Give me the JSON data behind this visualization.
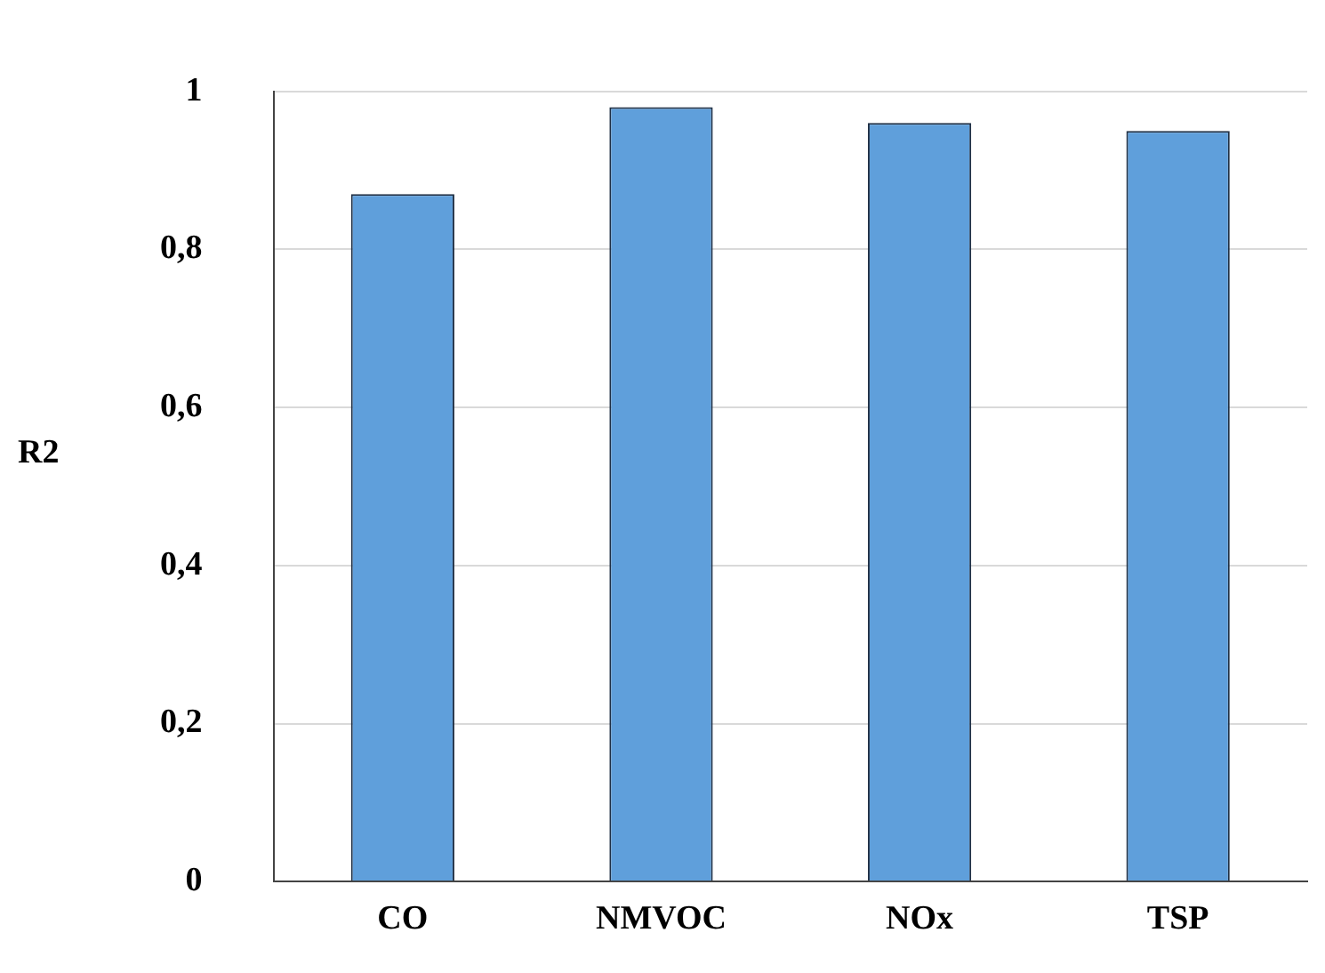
{
  "chart_data": {
    "type": "bar",
    "ylabel": "R2",
    "categories": [
      "CO",
      "NMVOC",
      "NOx",
      "TSP"
    ],
    "values": [
      0.87,
      0.98,
      0.96,
      0.95
    ],
    "color": "#5f9fdb",
    "ylim": [
      0,
      1
    ],
    "yticks": [
      0,
      {
        "value": 0.2,
        "label": "0,2"
      },
      {
        "value": 0.4,
        "label": "0,4"
      },
      {
        "value": 0.6,
        "label": "0,6"
      },
      {
        "value": 0.8,
        "label": "0,8"
      },
      1
    ],
    "grid": "y"
  }
}
